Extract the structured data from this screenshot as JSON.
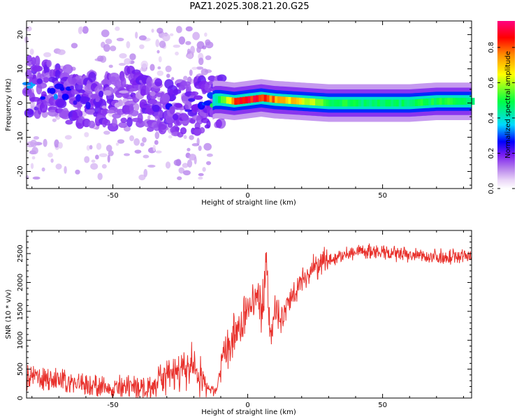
{
  "chart_data": [
    {
      "type": "heatmap",
      "title": "PAZ1.2025.308.21.20.G25",
      "xlabel": "Height of straight line (km)",
      "ylabel": "Frequency (Hz)",
      "xlim": [
        -82,
        83
      ],
      "ylim": [
        -25,
        24
      ],
      "xticks": [
        -50,
        0,
        50
      ],
      "yticks": [
        20,
        10,
        0,
        -10,
        -20
      ],
      "colorbar": {
        "label": "Normalized spectral amplitude",
        "range": [
          0,
          0.95
        ],
        "ticks": [
          0.0,
          0.2,
          0.4,
          0.6,
          0.8
        ],
        "colormap": [
          "#ffffff",
          "#ead6f7",
          "#b681ec",
          "#7a1cf0",
          "#0000ff",
          "#00d8ff",
          "#00ff44",
          "#ffff00",
          "#ff8a00",
          "#ff0000",
          "#ff0080"
        ]
      },
      "ridge": {
        "x": [
          -82,
          -75,
          -70,
          -65,
          -60,
          -55,
          -50,
          -45,
          -40,
          -35,
          -30,
          -25,
          -20,
          -15,
          -12,
          -10,
          -5,
          0,
          5,
          10,
          20,
          30,
          40,
          50,
          60,
          70,
          83
        ],
        "freq": [
          5,
          4,
          3,
          2,
          2,
          1,
          0,
          2,
          1,
          0,
          -1,
          -2,
          -1,
          0,
          1,
          1,
          0.5,
          1,
          1.5,
          1,
          0.5,
          0,
          0,
          0,
          0,
          0.5,
          0.5
        ],
        "amplitude": [
          0.3,
          0.28,
          0.27,
          0.25,
          0.2,
          0.18,
          0.15,
          0.15,
          0.15,
          0.18,
          0.2,
          0.22,
          0.25,
          0.3,
          0.45,
          0.6,
          0.85,
          0.95,
          0.88,
          0.8,
          0.7,
          0.55,
          0.5,
          0.5,
          0.5,
          0.55,
          0.5
        ]
      }
    },
    {
      "type": "line",
      "xlabel": "Height of straight line (km)",
      "ylabel": "SNR (10 * v/v)",
      "xlim": [
        -82,
        83
      ],
      "ylim": [
        0,
        2900
      ],
      "xticks": [
        -50,
        0,
        50
      ],
      "yticks": [
        0,
        500,
        1000,
        1500,
        2000,
        2500
      ],
      "color": "#e8302b",
      "series": [
        {
          "x": [
            -82,
            -80,
            -75,
            -70,
            -65,
            -60,
            -55,
            -50,
            -45,
            -40,
            -35,
            -30,
            -25,
            -20,
            -18,
            -15,
            -12,
            -10,
            -8,
            -5,
            -2,
            0,
            2,
            4,
            5,
            6,
            7,
            8,
            9,
            10,
            12,
            15,
            18,
            20,
            25,
            30,
            35,
            40,
            50,
            60,
            70,
            80,
            83
          ],
          "values": [
            320,
            380,
            330,
            300,
            270,
            230,
            200,
            160,
            160,
            200,
            280,
            370,
            450,
            540,
            300,
            150,
            120,
            450,
            820,
            1050,
            1300,
            1550,
            1650,
            1750,
            1500,
            1900,
            2500,
            1250,
            1000,
            1700,
            1250,
            1650,
            1900,
            2050,
            2250,
            2400,
            2450,
            2550,
            2500,
            2470,
            2450,
            2450,
            2450
          ]
        }
      ]
    }
  ]
}
